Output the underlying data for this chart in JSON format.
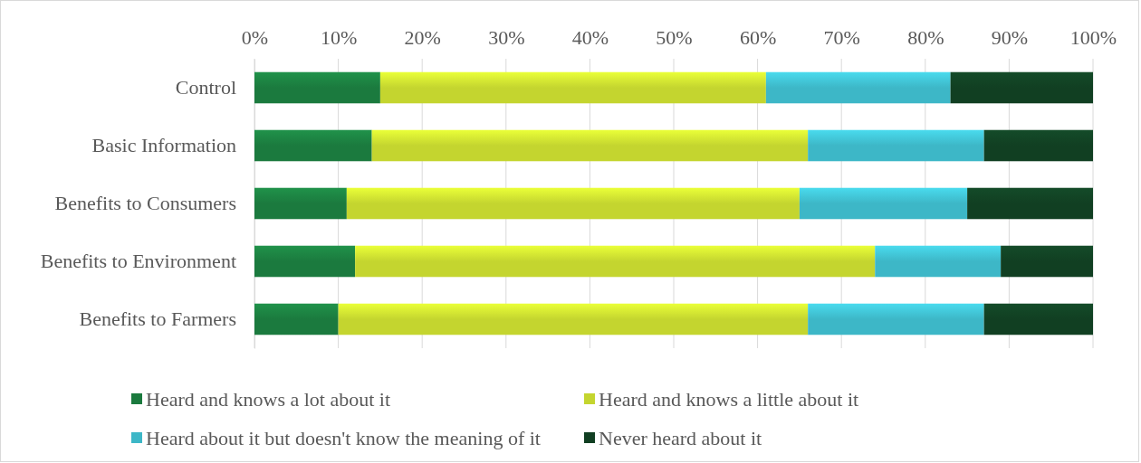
{
  "chart_data": {
    "type": "bar",
    "orientation": "horizontal",
    "stacked": true,
    "categories": [
      "Control",
      "Basic Information",
      "Benefits to Consumers",
      "Benefits to Environment",
      "Benefits to Farmers"
    ],
    "series": [
      {
        "name": "Heard and knows a lot about it",
        "color": "#1b7a3e",
        "values": [
          15,
          14,
          11,
          12,
          10
        ]
      },
      {
        "name": "Heard and knows a little about it",
        "color": "#c4d52f",
        "values": [
          46,
          52,
          54,
          62,
          56
        ]
      },
      {
        "name": "Heard about it but doesn't know the meaning of it",
        "color": "#3db7c7",
        "values": [
          22,
          21,
          20,
          15,
          21
        ]
      },
      {
        "name": "Never heard about it",
        "color": "#113f22",
        "values": [
          17,
          13,
          15,
          11,
          13
        ]
      }
    ],
    "xlim": [
      0,
      100
    ],
    "xticks": [
      {
        "value": 0,
        "label": "0%"
      },
      {
        "value": 10,
        "label": "10%"
      },
      {
        "value": 20,
        "label": "20%"
      },
      {
        "value": 30,
        "label": "30%"
      },
      {
        "value": 40,
        "label": "40%"
      },
      {
        "value": 50,
        "label": "50%"
      },
      {
        "value": 60,
        "label": "60%"
      },
      {
        "value": 70,
        "label": "70%"
      },
      {
        "value": 80,
        "label": "80%"
      },
      {
        "value": 90,
        "label": "90%"
      },
      {
        "value": 100,
        "label": "100%"
      }
    ],
    "grid": "x",
    "legend": "bottom"
  }
}
